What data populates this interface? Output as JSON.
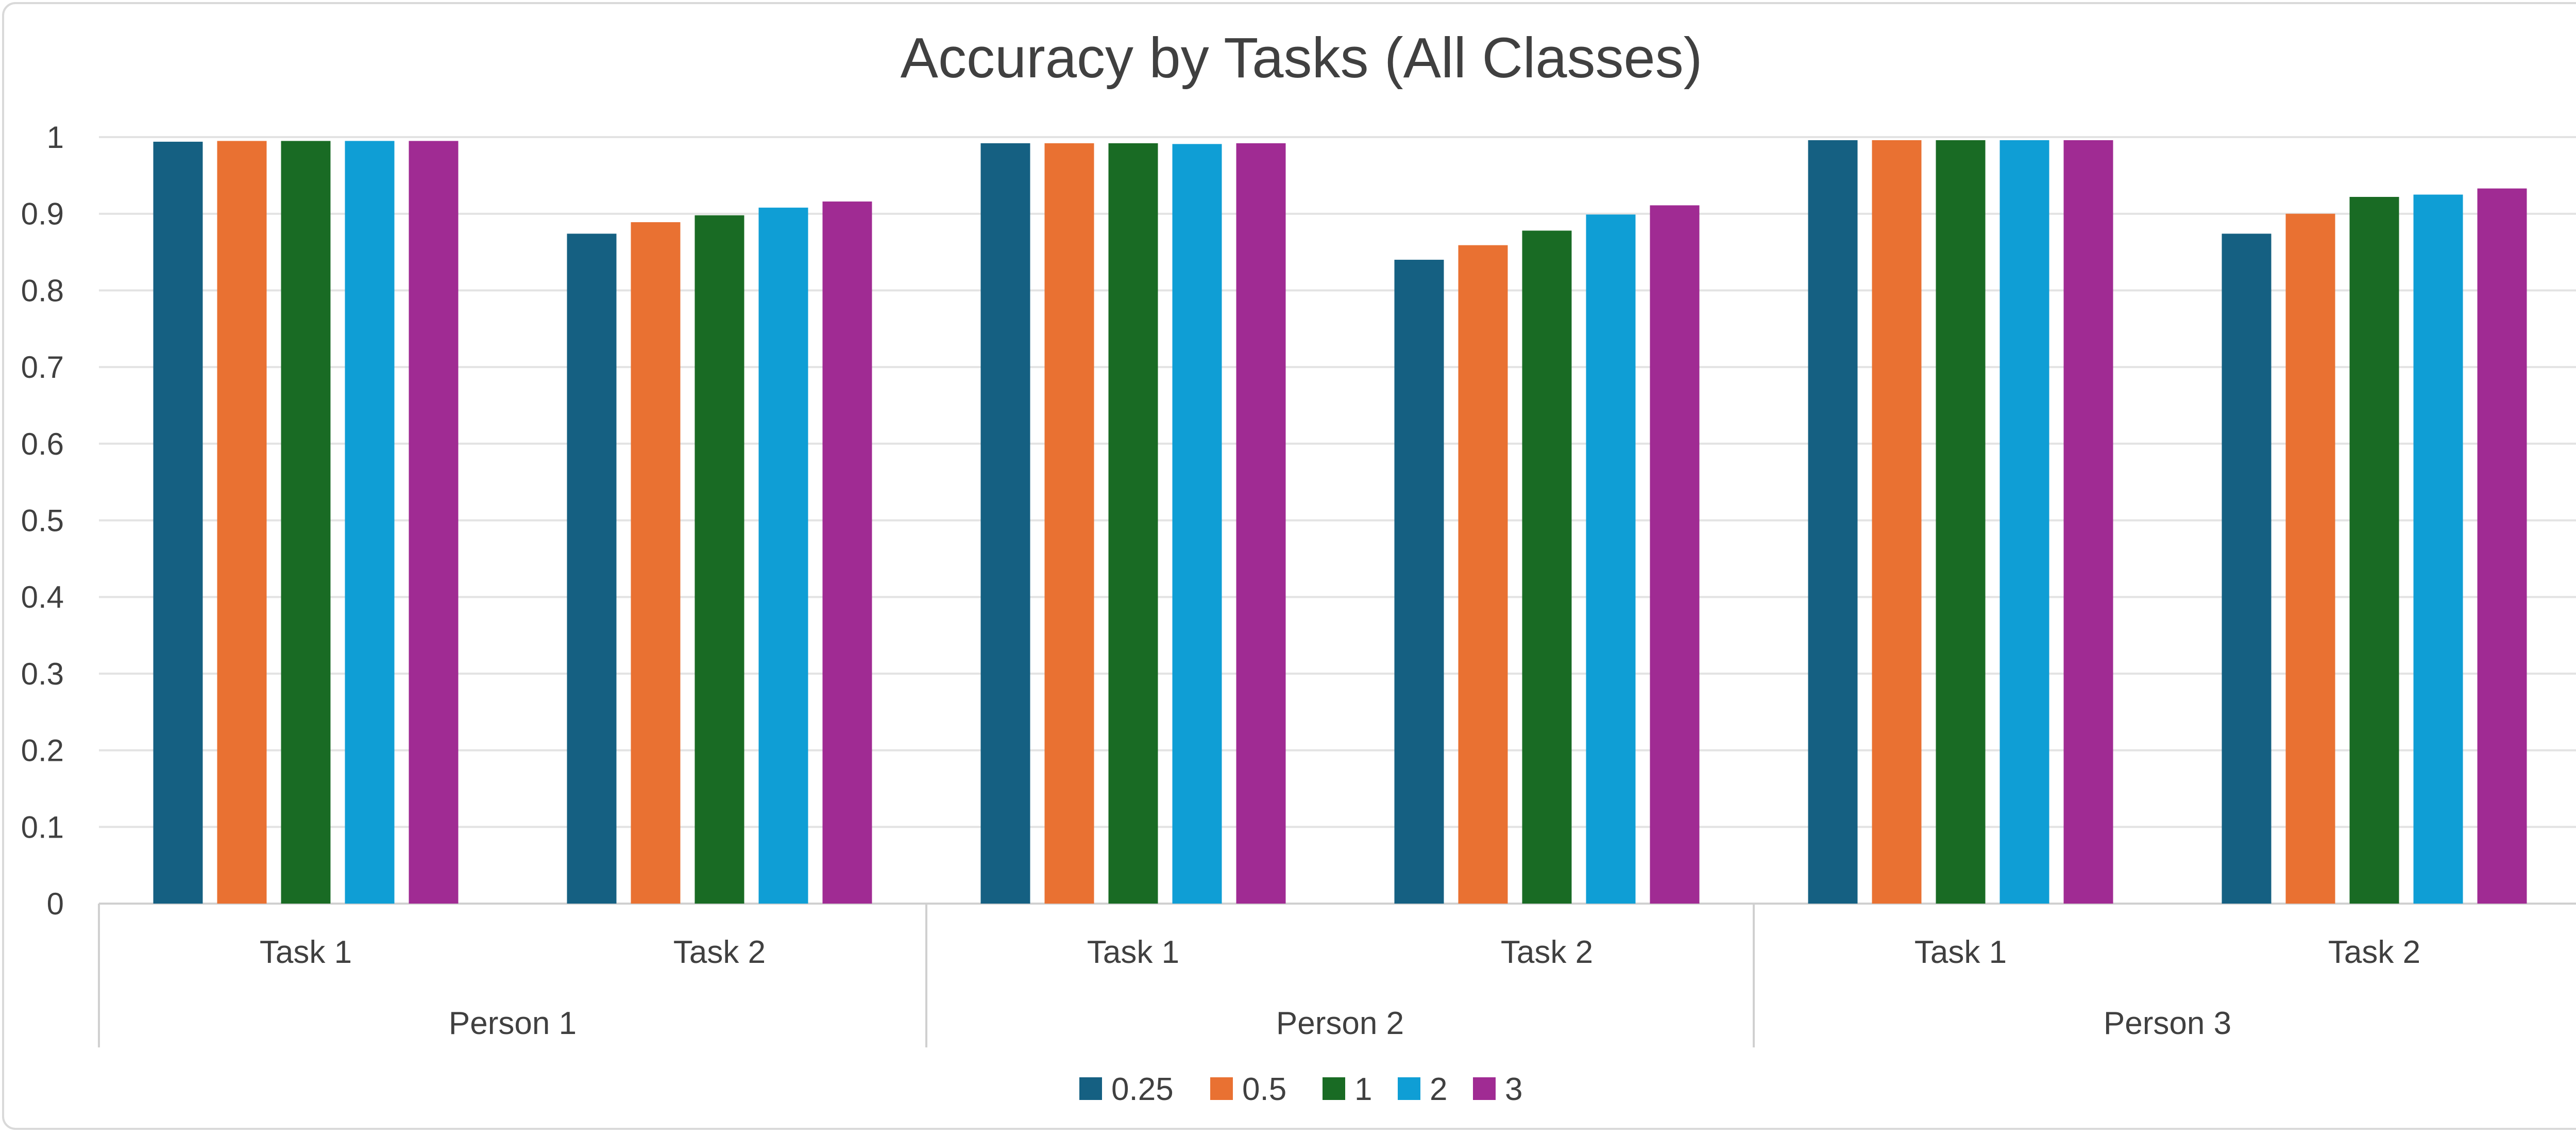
{
  "chart_data": {
    "type": "bar",
    "title": "Accuracy by Tasks (All Classes)",
    "xlabel": "",
    "ylabel": "",
    "ylim": [
      0,
      1
    ],
    "yticks": [
      "0",
      "0.1",
      "0.2",
      "0.3",
      "0.4",
      "0.5",
      "0.6",
      "0.7",
      "0.8",
      "0.9",
      "1"
    ],
    "groups": [
      "Person 1",
      "Person 2",
      "Person 3"
    ],
    "categories": [
      "Task 1",
      "Task 2",
      "Task 1",
      "Task 2",
      "Task 1",
      "Task 2"
    ],
    "grid": true,
    "legend_position": "bottom",
    "series": [
      {
        "name": "0.25",
        "color": "#156082",
        "values": [
          0.994,
          0.874,
          0.992,
          0.84,
          0.996,
          0.874
        ]
      },
      {
        "name": "0.5",
        "color": "#E97132",
        "values": [
          0.995,
          0.889,
          0.992,
          0.859,
          0.996,
          0.9
        ]
      },
      {
        "name": "1",
        "color": "#196B24",
        "values": [
          0.995,
          0.898,
          0.992,
          0.878,
          0.996,
          0.922
        ]
      },
      {
        "name": "2",
        "color": "#0F9ED5",
        "values": [
          0.995,
          0.908,
          0.991,
          0.899,
          0.996,
          0.925
        ]
      },
      {
        "name": "3",
        "color": "#A02B93",
        "values": [
          0.995,
          0.916,
          0.992,
          0.911,
          0.996,
          0.933
        ]
      }
    ]
  }
}
